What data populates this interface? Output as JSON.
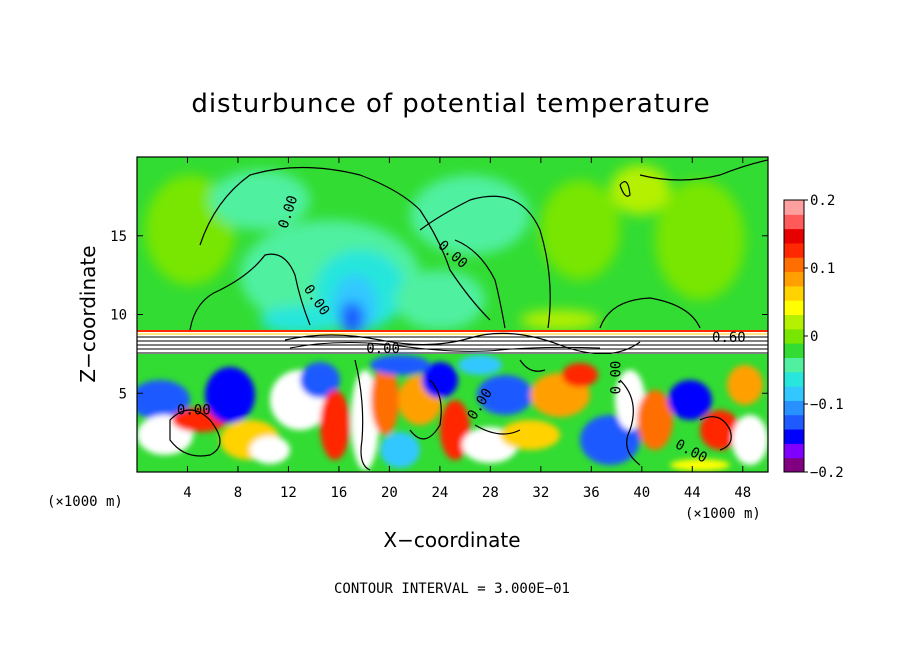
{
  "chart_data": {
    "type": "heatmap",
    "title": "disturbunce of potential temperature",
    "xlabel": "X−coordinate",
    "ylabel": "Z−coordinate",
    "x_unit": "(×1000 m)",
    "y_unit": "(×1000 m)",
    "xlim": [
      0,
      50
    ],
    "ylim": [
      0,
      20
    ],
    "x_ticks": [
      4,
      8,
      12,
      16,
      20,
      24,
      28,
      32,
      36,
      40,
      44,
      48
    ],
    "y_ticks": [
      5,
      10,
      15
    ],
    "colorbar": {
      "range": [
        -0.2,
        0.2
      ],
      "tick_values": [
        0.2,
        0.1,
        0,
        -0.1,
        -0.2
      ],
      "tick_labels": [
        "0.2",
        "0.1",
        "0",
        "−0.1",
        "−0.2"
      ],
      "colors": [
        "#800080",
        "#7f00ff",
        "#0000ff",
        "#1e5aff",
        "#2891ff",
        "#32c8ff",
        "#28e6dc",
        "#50f0a0",
        "#32dc32",
        "#78e600",
        "#b4f000",
        "#ffff00",
        "#ffd200",
        "#ffa000",
        "#ff6e00",
        "#ff2800",
        "#e60000",
        "#ff5a5a",
        "#ffa0a0"
      ]
    },
    "contour_labels": [
      {
        "text": "0.00",
        "x": 12.0,
        "z": 16.5,
        "angle": -72
      },
      {
        "text": "0.00",
        "x": 25.0,
        "z": 13.8,
        "angle": 42
      },
      {
        "text": "0.00",
        "x": 14.2,
        "z": 10.9,
        "angle": 55
      },
      {
        "text": "0.60",
        "x": 46.9,
        "z": 8.5,
        "angle": 0
      },
      {
        "text": "0.00",
        "x": 19.5,
        "z": 7.8,
        "angle": 0
      },
      {
        "text": "0.00",
        "x": 4.5,
        "z": 3.9,
        "angle": 0
      },
      {
        "text": "0.00",
        "x": 27.2,
        "z": 4.3,
        "angle": -58
      },
      {
        "text": "0.00",
        "x": 38.0,
        "z": 6.0,
        "angle": -90
      },
      {
        "text": "0.00",
        "x": 43.9,
        "z": 1.3,
        "angle": 28
      }
    ],
    "contour_interval_text": "CONTOUR INTERVAL = 3.000E−01",
    "legend": "colorbar right"
  }
}
